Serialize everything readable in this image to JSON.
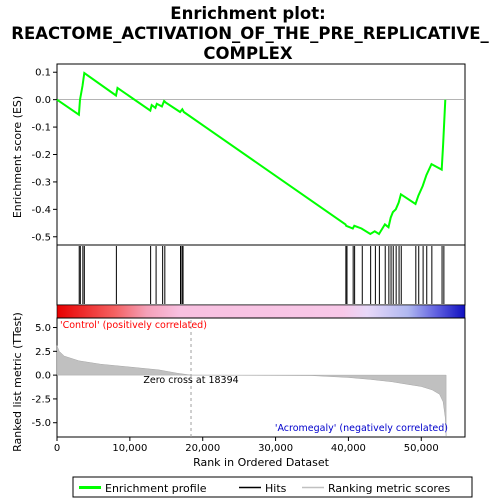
{
  "title_line1": "Enrichment plot:",
  "title_line2": "REACTOME_ACTIVATION_OF_THE_PRE_REPLICATIVE_",
  "title_line3": "COMPLEX",
  "chart_data": {
    "type": "line",
    "panels": {
      "enrichment": {
        "ylabel": "Enrichment score (ES)",
        "ylim": [
          -0.53,
          0.13
        ],
        "yticks": [
          0.1,
          0.0,
          -0.1,
          -0.2,
          -0.3,
          -0.4,
          -0.5
        ],
        "ytick_labels": [
          "0.1",
          "0.0",
          "-0.1",
          "-0.2",
          "-0.3",
          "-0.4",
          "-0.5"
        ],
        "zero_line": true,
        "series": [
          {
            "name": "Enrichment profile",
            "color": "#00ff00",
            "x": [
              0,
              3000,
              3150,
              3500,
              3750,
              8100,
              8300,
              12800,
              13000,
              13500,
              13700,
              14400,
              14700,
              14900,
              16900,
              17200,
              17400,
              39600,
              39700,
              40600,
              40800,
              41800,
              43000,
              43600,
              44200,
              45000,
              45500,
              45800,
              46100,
              46500,
              46900,
              47200,
              49200,
              49600,
              50200,
              50700,
              51400,
              52800,
              53000,
              53300
            ],
            "y": [
              0.0,
              -0.055,
              0.0,
              0.05,
              0.097,
              0.015,
              0.043,
              -0.04,
              -0.02,
              -0.03,
              -0.015,
              -0.025,
              -0.005,
              -0.01,
              -0.045,
              -0.035,
              -0.045,
              -0.455,
              -0.46,
              -0.47,
              -0.46,
              -0.47,
              -0.49,
              -0.48,
              -0.49,
              -0.455,
              -0.465,
              -0.43,
              -0.41,
              -0.4,
              -0.375,
              -0.345,
              -0.38,
              -0.35,
              -0.315,
              -0.275,
              -0.235,
              -0.255,
              -0.165,
              0.0
            ]
          }
        ]
      },
      "hits": {
        "positions": [
          3050,
          3200,
          3550,
          3750,
          8150,
          12850,
          13600,
          14500,
          14800,
          16950,
          17150,
          17300,
          39650,
          39800,
          40650,
          40850,
          41900,
          43050,
          43700,
          44250,
          45050,
          45550,
          45850,
          46150,
          46550,
          46950,
          47250,
          49250,
          49650,
          50250,
          50750,
          51450,
          52850,
          53100
        ]
      },
      "ranked_metric": {
        "ylabel": "Ranked list metric (TTest)",
        "ylim": [
          -6.5,
          6.0
        ],
        "yticks": [
          5.0,
          2.5,
          0.0,
          -2.5,
          -5.0
        ],
        "ytick_labels": [
          "5.0",
          "2.5",
          "0.0",
          "-2.5",
          "-5.0"
        ],
        "x": [
          0,
          300,
          1000,
          3000,
          6000,
          10000,
          14000,
          16500,
          18394,
          25000,
          35000,
          40000,
          43000,
          46000,
          48000,
          50000,
          51500,
          52500,
          53000,
          53300,
          53400
        ],
        "y": [
          3.1,
          2.5,
          2.0,
          1.5,
          1.15,
          0.85,
          0.55,
          0.2,
          0.0,
          -0.02,
          -0.05,
          -0.25,
          -0.45,
          -0.7,
          -0.95,
          -1.2,
          -1.55,
          -2.0,
          -2.8,
          -4.5,
          -6.4
        ],
        "zero_cross_label": "Zero cross at 18394",
        "zero_cross_x": 18394,
        "positive_label": "'Control' (positively correlated)",
        "negative_label": "'Acromegaly' (negatively correlated)"
      }
    },
    "xlabel": "Rank in Ordered Dataset",
    "xlim": [
      0,
      56000
    ],
    "xticks": [
      0,
      10000,
      20000,
      30000,
      40000,
      50000
    ],
    "xtick_labels": [
      "0",
      "10,000",
      "20,000",
      "30,000",
      "40,000",
      "50,000"
    ],
    "legend": {
      "placement": "bottom",
      "entries": [
        {
          "label": "Enrichment profile",
          "color": "#00ff00"
        },
        {
          "label": "Hits",
          "color": "#000000"
        },
        {
          "label": "Ranking metric scores",
          "color": "#c0c0c0"
        }
      ]
    },
    "colors": {
      "profile": "#00ff00",
      "metric_fill": "#c0c0c0",
      "positive_label": "#ff0000",
      "negative_label": "#0000cc",
      "zero_cross_line": "#a0a0a0"
    }
  }
}
